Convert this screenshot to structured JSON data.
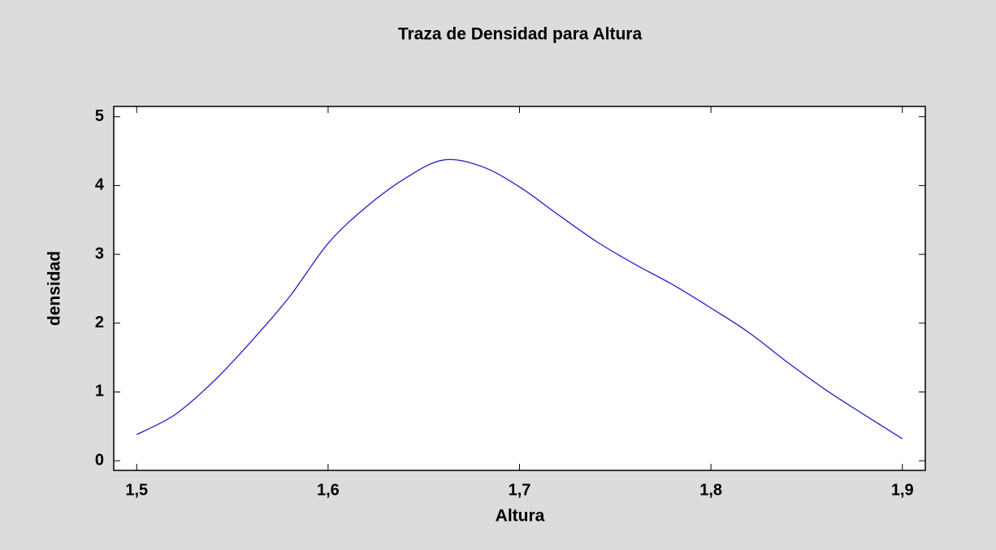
{
  "chart_data": {
    "type": "line",
    "title": "Traza de Densidad para Altura",
    "x_label": "Altura",
    "y_label": "densidad",
    "x": [
      1.5,
      1.52,
      1.54,
      1.56,
      1.58,
      1.6,
      1.62,
      1.64,
      1.66,
      1.68,
      1.7,
      1.72,
      1.74,
      1.76,
      1.78,
      1.8,
      1.82,
      1.84,
      1.86,
      1.88,
      1.9
    ],
    "series": [
      {
        "color": "#2020d0",
        "values": [
          0.38,
          0.67,
          1.15,
          1.74,
          2.39,
          3.16,
          3.69,
          4.1,
          4.37,
          4.28,
          3.98,
          3.58,
          3.19,
          2.86,
          2.56,
          2.22,
          1.86,
          1.43,
          1.03,
          0.67,
          0.32
        ]
      }
    ],
    "xlim": [
      1.488,
      1.912
    ],
    "ylim": [
      -0.14,
      5.15
    ],
    "xticks": [
      {
        "value": 1.5,
        "label": "1,5"
      },
      {
        "value": 1.6,
        "label": "1,6"
      },
      {
        "value": 1.7,
        "label": "1,7"
      },
      {
        "value": 1.8,
        "label": "1,8"
      },
      {
        "value": 1.9,
        "label": "1,9"
      }
    ],
    "yticks": [
      0,
      1,
      2,
      3,
      4,
      5
    ],
    "grid": false
  }
}
